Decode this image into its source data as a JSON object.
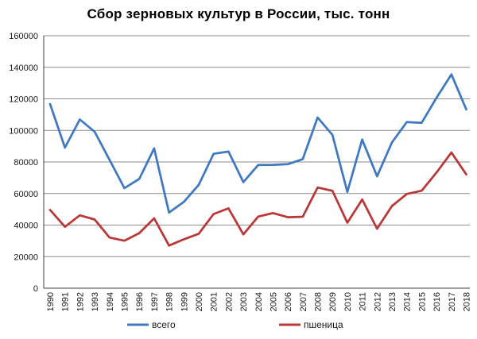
{
  "title": "Сбор зерновых культур в России, тыс. тонн",
  "colors": {
    "background": "#ffffff",
    "grid": "#8c8c8c",
    "axis": "#3f3f3f",
    "text": "#1a1a1a",
    "series_total": "#3e79c2",
    "series_wheat": "#bb3737"
  },
  "chart_data": {
    "type": "line",
    "title": "Сбор зерновых культур в России, тыс. тонн",
    "xlabel": "",
    "ylabel": "",
    "ylim": [
      0,
      160000
    ],
    "ytick_step": 20000,
    "grid": "horizontal",
    "legend_position": "bottom",
    "x": [
      1990,
      1991,
      1992,
      1993,
      1994,
      1995,
      1996,
      1997,
      1998,
      1999,
      2000,
      2001,
      2002,
      2003,
      2004,
      2005,
      2006,
      2007,
      2008,
      2009,
      2010,
      2011,
      2012,
      2013,
      2014,
      2015,
      2016,
      2017,
      2018
    ],
    "series": [
      {
        "name": "всего",
        "color": "#3e79c2",
        "values": [
          116700,
          89100,
          106900,
          99100,
          81300,
          63400,
          69300,
          88600,
          47900,
          54700,
          65500,
          85200,
          86600,
          67200,
          78100,
          78200,
          78600,
          81800,
          108200,
          97100,
          61000,
          94200,
          70900,
          92400,
          105300,
          104800,
          120700,
          135500,
          113300
        ]
      },
      {
        "name": "пшеница",
        "color": "#bb3737",
        "values": [
          49600,
          38900,
          46200,
          43500,
          32100,
          30100,
          34900,
          44300,
          27000,
          31000,
          34500,
          47000,
          50600,
          34100,
          45400,
          47600,
          45000,
          45300,
          63800,
          61700,
          41500,
          56200,
          37700,
          52100,
          59700,
          61800,
          73300,
          86000,
          72100
        ]
      }
    ]
  }
}
